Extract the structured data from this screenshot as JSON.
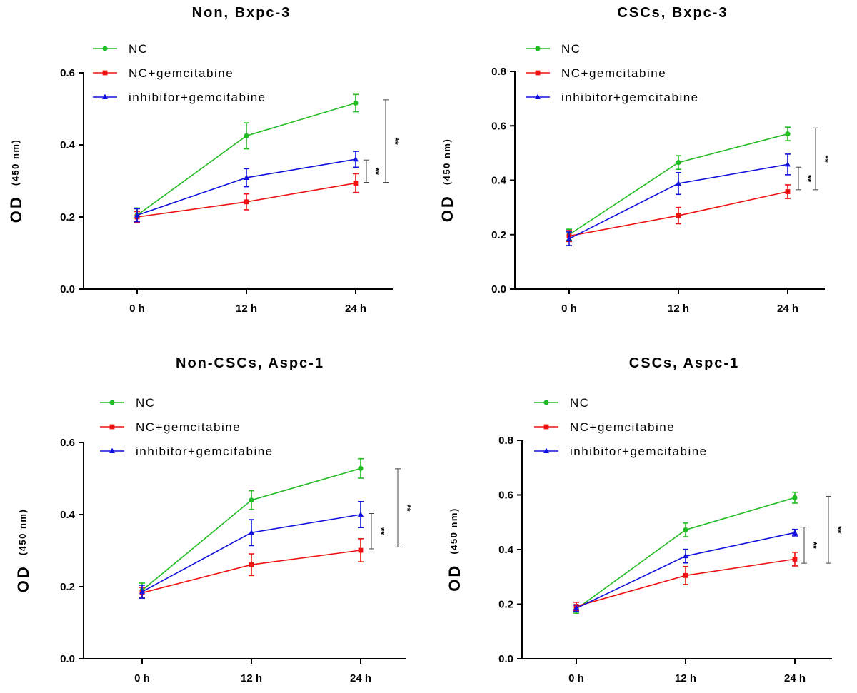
{
  "colors": {
    "NC": "#22bb22",
    "NC+gemcitabine": "#ee1111",
    "inhibitor+gemcitabine": "#1111dd"
  },
  "chart_data": [
    {
      "type": "line",
      "title": "Non, Bxpc-3",
      "ylabel": "OD",
      "ylabel_unit": "(450 nm)",
      "categories": [
        "0 h",
        "12 h",
        "24 h"
      ],
      "ylim": [
        0,
        0.6
      ],
      "yticks": [
        "0.0",
        "0.2",
        "0.4",
        "0.6"
      ],
      "legend_position": "top-left",
      "series": [
        {
          "name": "NC",
          "marker": "circle",
          "values": [
            0.205,
            0.425,
            0.516
          ],
          "errors": [
            0.02,
            0.036,
            0.024
          ]
        },
        {
          "name": "NC+gemcitabine",
          "marker": "square",
          "values": [
            0.2,
            0.242,
            0.294
          ],
          "errors": [
            0.015,
            0.022,
            0.026
          ]
        },
        {
          "name": "inhibitor+gemcitabine",
          "marker": "triangle",
          "values": [
            0.205,
            0.309,
            0.36
          ],
          "errors": [
            0.018,
            0.025,
            0.022
          ]
        }
      ],
      "significance": [
        {
          "label": "**",
          "span": [
            0.296,
            0.358
          ],
          "pos": "inner"
        },
        {
          "label": "**",
          "span": [
            0.296,
            0.525
          ],
          "pos": "outer"
        }
      ]
    },
    {
      "type": "line",
      "title": "CSCs, Bxpc-3",
      "ylabel": "OD",
      "ylabel_unit": "(450 nm)",
      "categories": [
        "0 h",
        "12 h",
        "24 h"
      ],
      "ylim": [
        0,
        0.8
      ],
      "yticks": [
        "0.0",
        "0.2",
        "0.4",
        "0.6",
        "0.8"
      ],
      "legend_position": "top-left",
      "series": [
        {
          "name": "NC",
          "marker": "circle",
          "values": [
            0.2,
            0.465,
            0.57
          ],
          "errors": [
            0.02,
            0.025,
            0.025
          ]
        },
        {
          "name": "NC+gemcitabine",
          "marker": "square",
          "values": [
            0.195,
            0.27,
            0.358
          ],
          "errors": [
            0.02,
            0.03,
            0.025
          ]
        },
        {
          "name": "inhibitor+gemcitabine",
          "marker": "triangle",
          "values": [
            0.185,
            0.388,
            0.458
          ],
          "errors": [
            0.025,
            0.04,
            0.038
          ]
        }
      ],
      "significance": [
        {
          "label": "**",
          "span": [
            0.365,
            0.448
          ],
          "pos": "inner"
        },
        {
          "label": "**",
          "span": [
            0.365,
            0.592
          ],
          "pos": "outer"
        }
      ]
    },
    {
      "type": "line",
      "title": "Non-CSCs, Aspc-1",
      "ylabel": "OD",
      "ylabel_unit": "(450 nm)",
      "categories": [
        "0 h",
        "12 h",
        "24 h"
      ],
      "ylim": [
        0,
        0.6
      ],
      "yticks": [
        "0.0",
        "0.2",
        "0.4",
        "0.6"
      ],
      "legend_position": "top-left",
      "series": [
        {
          "name": "NC",
          "marker": "circle",
          "values": [
            0.19,
            0.44,
            0.528
          ],
          "errors": [
            0.02,
            0.026,
            0.027
          ]
        },
        {
          "name": "NC+gemcitabine",
          "marker": "square",
          "values": [
            0.183,
            0.261,
            0.301
          ],
          "errors": [
            0.015,
            0.03,
            0.032
          ]
        },
        {
          "name": "inhibitor+gemcitabine",
          "marker": "triangle",
          "values": [
            0.186,
            0.35,
            0.4
          ],
          "errors": [
            0.018,
            0.036,
            0.036
          ]
        }
      ],
      "significance": [
        {
          "label": "**",
          "span": [
            0.305,
            0.403
          ],
          "pos": "inner"
        },
        {
          "label": "**",
          "span": [
            0.31,
            0.527
          ],
          "pos": "outer"
        }
      ]
    },
    {
      "type": "line",
      "title": "CSCs, Aspc-1",
      "ylabel": "OD",
      "ylabel_unit": "(450 nm)",
      "categories": [
        "0 h",
        "12 h",
        "24 h"
      ],
      "ylim": [
        0,
        0.8
      ],
      "yticks": [
        "0.0",
        "0.2",
        "0.4",
        "0.6",
        "0.8"
      ],
      "legend_position": "top-left",
      "series": [
        {
          "name": "NC",
          "marker": "circle",
          "values": [
            0.182,
            0.472,
            0.59
          ],
          "errors": [
            0.015,
            0.025,
            0.02
          ]
        },
        {
          "name": "NC+gemcitabine",
          "marker": "square",
          "values": [
            0.192,
            0.305,
            0.365
          ],
          "errors": [
            0.015,
            0.033,
            0.025
          ]
        },
        {
          "name": "inhibitor+gemcitabine",
          "marker": "triangle",
          "values": [
            0.185,
            0.376,
            0.462
          ],
          "errors": [
            0.012,
            0.025,
            0.012
          ]
        }
      ],
      "significance": [
        {
          "label": "**",
          "span": [
            0.35,
            0.482
          ],
          "pos": "inner"
        },
        {
          "label": "**",
          "span": [
            0.35,
            0.595
          ],
          "pos": "outer"
        }
      ]
    }
  ]
}
